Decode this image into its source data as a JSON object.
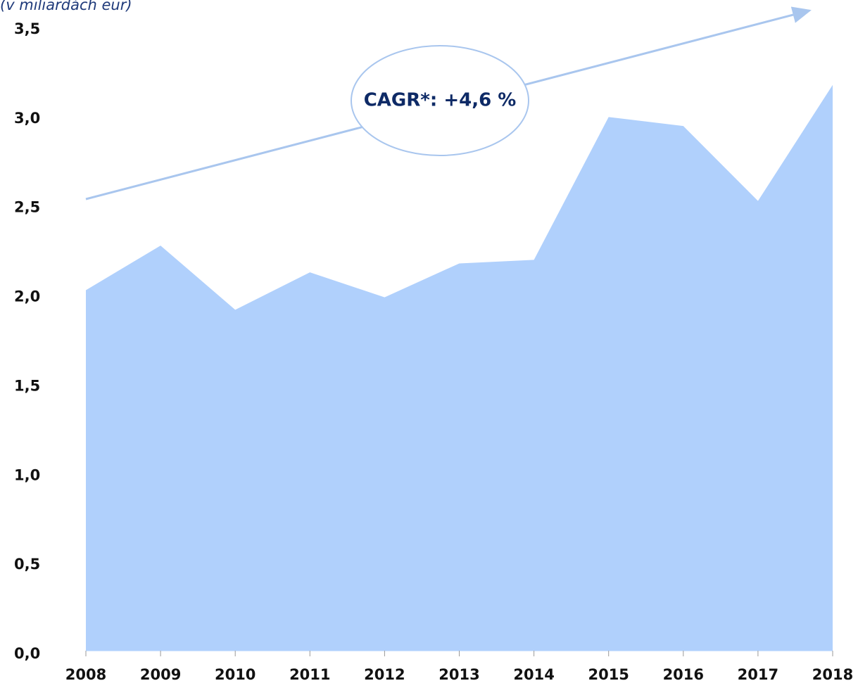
{
  "chart_data": {
    "type": "area",
    "subtitle": "(v miliardách eur)",
    "annotation": "CAGR*: +4,6 %",
    "categories": [
      "2008",
      "2009",
      "2010",
      "2011",
      "2012",
      "2013",
      "2014",
      "2015",
      "2016",
      "2017",
      "2018"
    ],
    "values": [
      2.02,
      2.27,
      1.91,
      2.12,
      1.98,
      2.17,
      2.19,
      2.99,
      2.94,
      2.52,
      3.17
    ],
    "color": "#b0d0fc",
    "ylim": [
      0,
      3.5
    ],
    "yticks": [
      {
        "value": 0,
        "label": "0,0"
      },
      {
        "value": 0.5,
        "label": "0,5"
      },
      {
        "value": 1,
        "label": "1,0"
      },
      {
        "value": 1.5,
        "label": "1,5"
      },
      {
        "value": 2,
        "label": "2,0"
      },
      {
        "value": 2.5,
        "label": "2,5"
      },
      {
        "value": 3,
        "label": "3,0"
      },
      {
        "value": 3.5,
        "label": "3,5"
      }
    ],
    "grid": false
  }
}
